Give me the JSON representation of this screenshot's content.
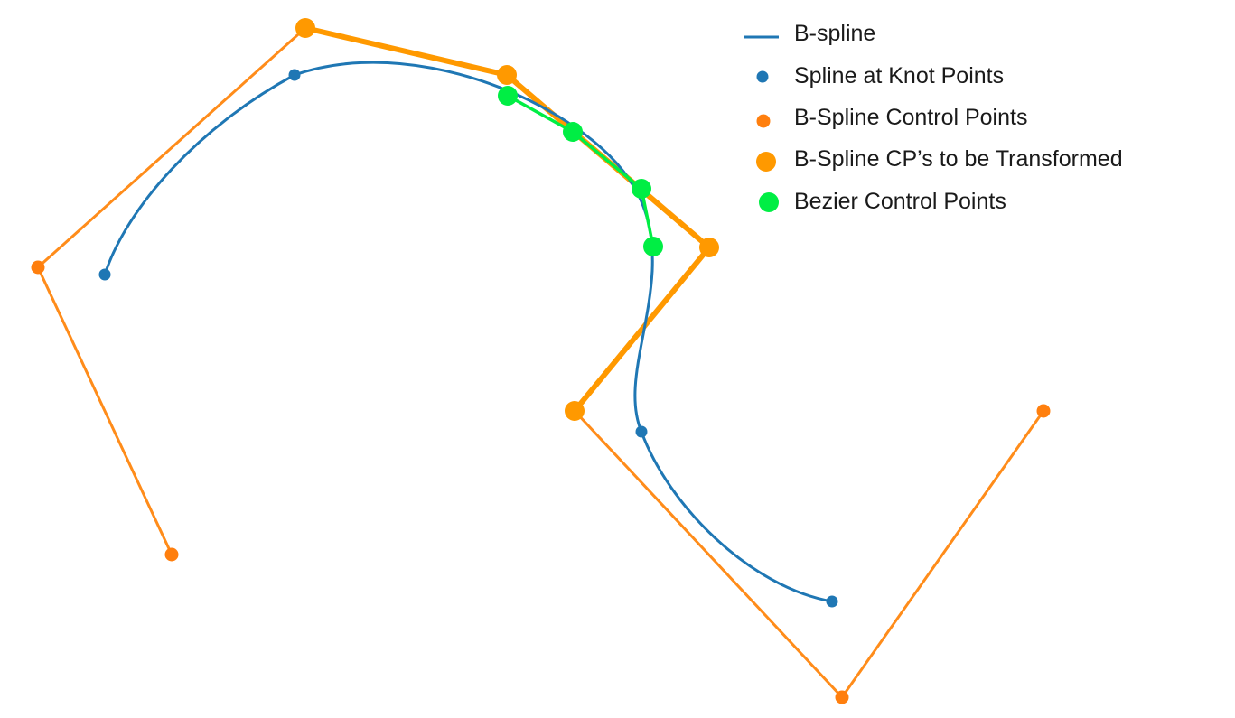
{
  "colors": {
    "spline": "#1f77b4",
    "control_polygon": "#ff8c1a",
    "transform_polygon": "#ff9900",
    "bezier": "#00ee44",
    "text": "#1a1a1a"
  },
  "legend": {
    "items": [
      {
        "label": "B-spline",
        "marker": "line",
        "color": "#1f77b4"
      },
      {
        "label": "Spline at Knot Points",
        "marker": "dot-small",
        "color": "#1f77b4"
      },
      {
        "label": "B-Spline Control Points",
        "marker": "dot-small",
        "color": "#ff7f0e"
      },
      {
        "label": "B-Spline CP’s to be Transformed",
        "marker": "dot-large",
        "color": "#ff9900"
      },
      {
        "label": "Bezier Control Points",
        "marker": "dot-large",
        "color": "#00ee44"
      }
    ]
  }
}
